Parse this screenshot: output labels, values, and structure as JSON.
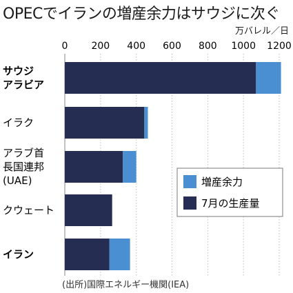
{
  "title": "OPECでイランの増産余力はサウジに次ぐ",
  "unit_label": "万バレル／日",
  "source": "(出所)国際エネルギー機関(IEA)",
  "colors": {
    "production": "#262d52",
    "capacity": "#4a8fd1",
    "axis": "#999999",
    "grid": "#bdbdbd"
  },
  "chart_data": {
    "type": "bar",
    "orientation": "horizontal",
    "stacked": true,
    "categories": [
      "サウジアラビア",
      "イラク",
      "アラブ首長国連邦(UAE)",
      "クウェート",
      "イラン"
    ],
    "category_lines": [
      [
        "サウジ",
        "アラビア"
      ],
      [
        "イラク"
      ],
      [
        "アラブ首",
        "長国連邦",
        "(UAE)"
      ],
      [
        "クウェート"
      ],
      [
        "イラン"
      ]
    ],
    "category_bold": [
      true,
      false,
      false,
      false,
      true
    ],
    "series": [
      {
        "name": "7月の生産量",
        "values": [
          1070,
          445,
          325,
          265,
          250
        ]
      },
      {
        "name": "増産余力",
        "values": [
          140,
          20,
          75,
          0,
          115
        ]
      }
    ],
    "xlim": [
      0,
      1200
    ],
    "xticks": [
      0,
      200,
      400,
      600,
      800,
      1000,
      1200
    ],
    "legend": {
      "position": "right-lower",
      "entries": [
        "増産余力",
        "7月の生産量"
      ]
    },
    "grid": true
  }
}
